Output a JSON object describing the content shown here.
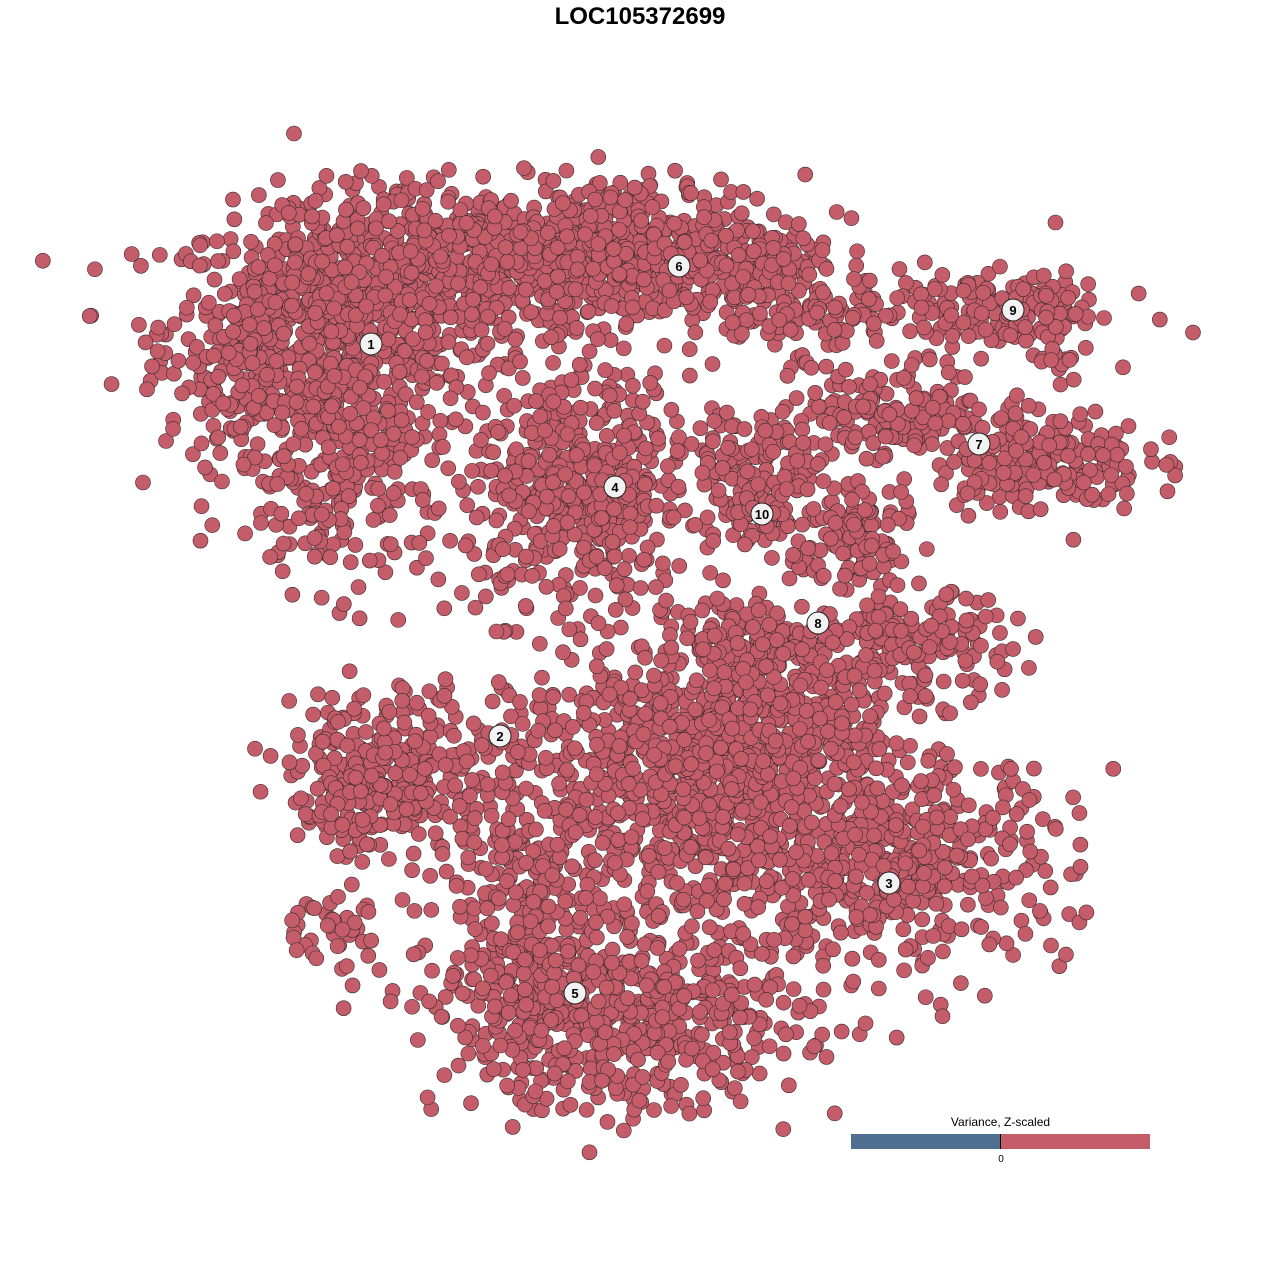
{
  "chart_data": {
    "type": "scatter",
    "title": "LOC105372699",
    "xlabel": "",
    "ylabel": "",
    "axes_visible": false,
    "grid": false,
    "xlim": [
      -45,
      50
    ],
    "ylim": [
      -46,
      46
    ],
    "point_color": "#c45d69",
    "point_outline": "#3a2a2c",
    "clusters": [
      {
        "label": "1",
        "label_pos": [
          -26.9,
          29.6
        ],
        "blobs": [
          {
            "c": [
              -31,
              31
            ],
            "s": [
              11,
              8
            ],
            "n": 700
          },
          {
            "c": [
              -17,
              38
            ],
            "s": [
              12,
              5
            ],
            "n": 500
          },
          {
            "c": [
              -30,
              17
            ],
            "s": [
              7,
              8
            ],
            "n": 250
          },
          {
            "c": [
              -40,
              28
            ],
            "s": [
              3.5,
              6
            ],
            "n": 80
          }
        ]
      },
      {
        "label": "6",
        "label_pos": [
          3.9,
          37.4
        ],
        "blobs": [
          {
            "c": [
              0,
              39
            ],
            "s": [
              11,
              5
            ],
            "n": 450
          },
          {
            "c": [
              14,
              34
            ],
            "s": [
              6,
              4
            ],
            "n": 150
          }
        ]
      },
      {
        "label": "9",
        "label_pos": [
          37.3,
          33
        ],
        "blobs": [
          {
            "c": [
              33,
              33
            ],
            "s": [
              9,
              3
            ],
            "n": 150
          },
          {
            "c": [
              41,
              31
            ],
            "s": [
              2,
              4
            ],
            "n": 40
          }
        ]
      },
      {
        "label": "7",
        "label_pos": [
          33.9,
          19.6
        ],
        "blobs": [
          {
            "c": [
              26,
              23
            ],
            "s": [
              6,
              3
            ],
            "n": 150
          },
          {
            "c": [
              40,
              18
            ],
            "s": [
              7,
              3.5
            ],
            "n": 200
          }
        ]
      },
      {
        "label": "4",
        "label_pos": [
          -2.5,
          15.3
        ],
        "blobs": [
          {
            "c": [
              -6,
              15
            ],
            "s": [
              7.5,
              8
            ],
            "n": 500
          }
        ]
      },
      {
        "label": "10",
        "label_pos": [
          12.2,
          12.6
        ],
        "blobs": [
          {
            "c": [
              11,
              18
            ],
            "s": [
              6,
              3.5
            ],
            "n": 120
          },
          {
            "c": [
              12.5,
              13
            ],
            "s": [
              2.5,
              3.5
            ],
            "n": 60
          }
        ]
      },
      {
        "label": "8",
        "label_pos": [
          17.8,
          1.7
        ],
        "blobs": [
          {
            "c": [
              21,
              10
            ],
            "s": [
              4,
              5
            ],
            "n": 130
          },
          {
            "c": [
              28,
              -1
            ],
            "s": [
              6,
              3.5
            ],
            "n": 150
          },
          {
            "c": [
              12,
              0
            ],
            "s": [
              6,
              2.5
            ],
            "n": 100
          }
        ]
      },
      {
        "label": "2",
        "label_pos": [
          -14,
          -9.6
        ],
        "blobs": [
          {
            "c": [
              -24,
              -12
            ],
            "s": [
              8,
              5
            ],
            "n": 250
          },
          {
            "c": [
              -28,
              -17
            ],
            "s": [
              4,
              3
            ],
            "n": 80
          },
          {
            "c": [
              -31,
              -28.5
            ],
            "s": [
              4,
              2.5
            ],
            "n": 40
          }
        ]
      },
      {
        "label": "3",
        "label_pos": [
          24.9,
          -24.3
        ],
        "blobs": [
          {
            "c": [
              25,
              -22
            ],
            "s": [
              12,
              7
            ],
            "n": 500
          }
        ]
      },
      {
        "label": "5",
        "label_pos": [
          -6.5,
          -35.3
        ],
        "blobs": [
          {
            "c": [
              -2,
              -38
            ],
            "s": [
              12,
              6
            ],
            "n": 600
          },
          {
            "c": [
              -12,
              -28
            ],
            "s": [
              6,
              7
            ],
            "n": 200
          },
          {
            "c": [
              4,
              -14
            ],
            "s": [
              13,
              10
            ],
            "n": 900
          },
          {
            "c": [
              12,
              -8
            ],
            "s": [
              8,
              5
            ],
            "n": 300
          }
        ]
      }
    ],
    "legend": {
      "title": "Variance, Z-scaled",
      "tick_label": "0",
      "low_color": "#506e8f",
      "high_color": "#c45d69",
      "placement": "bottom-right"
    }
  }
}
